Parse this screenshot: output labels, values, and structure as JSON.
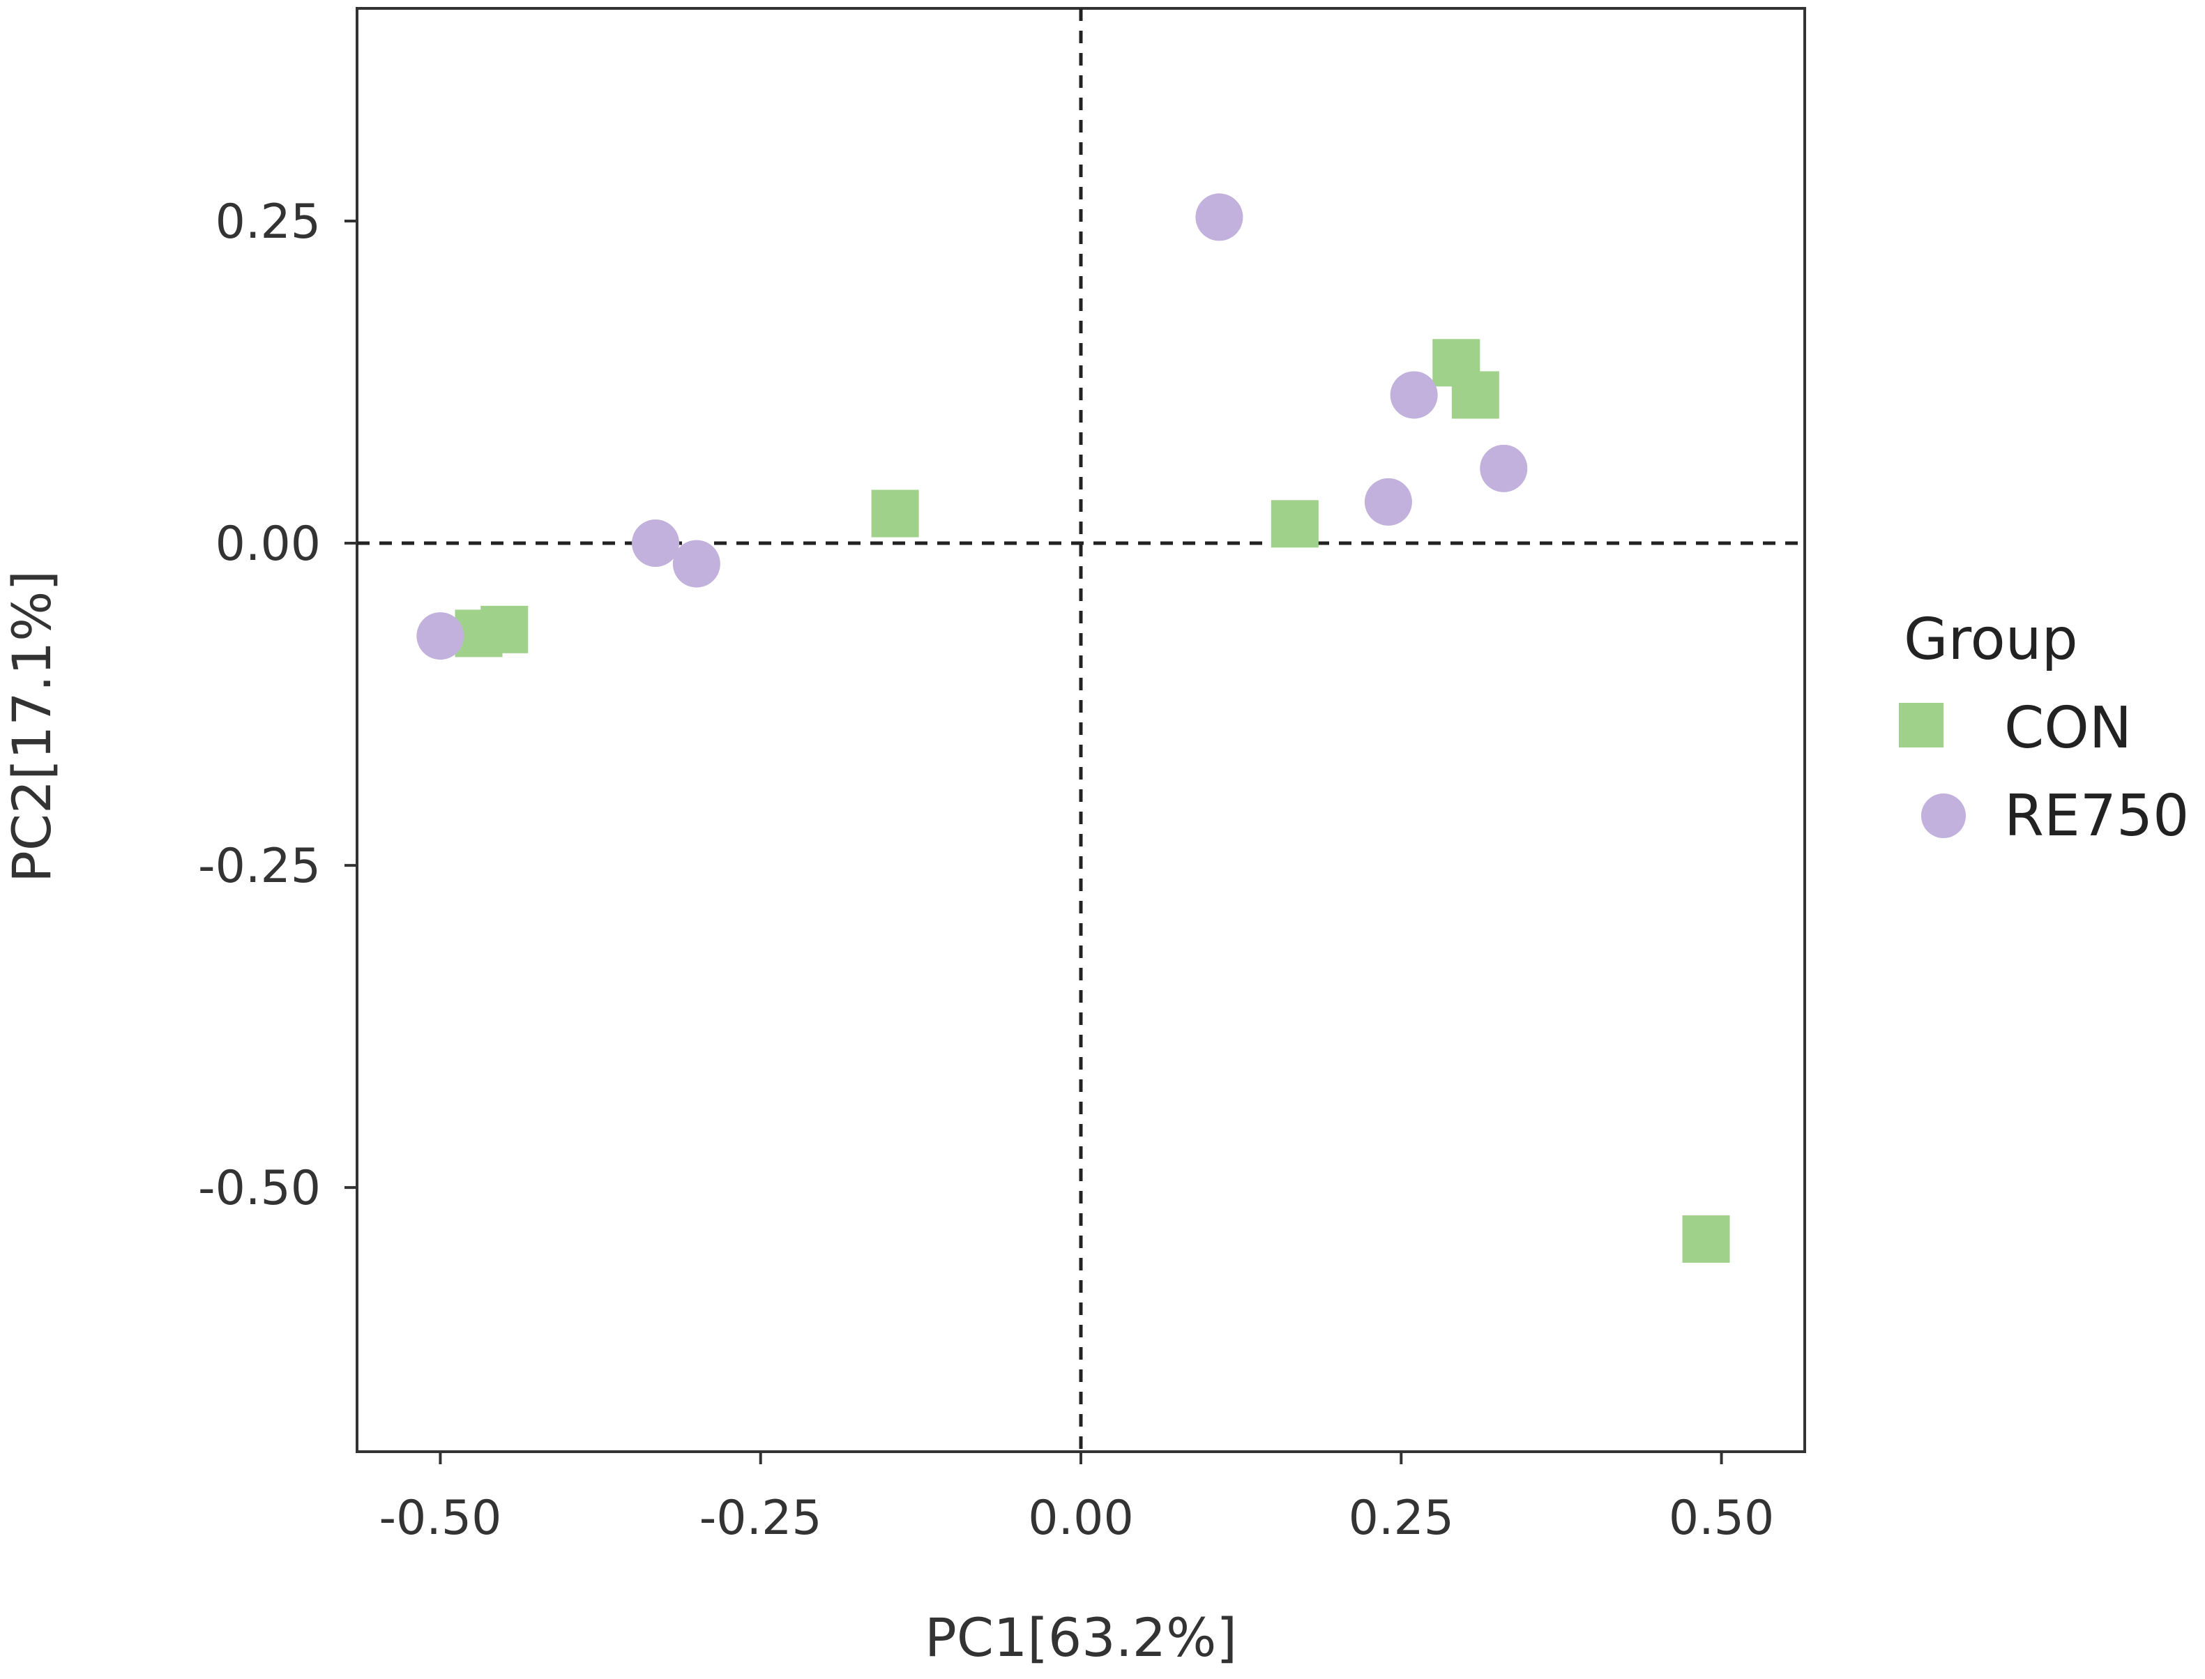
{
  "chart_data": {
    "type": "scatter",
    "title": "",
    "xlabel": "PC1[63.2%]",
    "ylabel": "PC2[17.1%]",
    "xlim": [
      -0.565,
      0.565
    ],
    "ylim": [
      -0.705,
      0.415
    ],
    "x_ticks": [
      {
        "value": -0.5,
        "label": "-0.50"
      },
      {
        "value": -0.25,
        "label": "-0.25"
      },
      {
        "value": 0.0,
        "label": "0.00"
      },
      {
        "value": 0.25,
        "label": "0.25"
      },
      {
        "value": 0.5,
        "label": "0.50"
      }
    ],
    "y_ticks": [
      {
        "value": 0.25,
        "label": "0.25"
      },
      {
        "value": 0.0,
        "label": "0.00"
      },
      {
        "value": -0.25,
        "label": "-0.25"
      },
      {
        "value": -0.5,
        "label": "-0.50"
      }
    ],
    "reference_lines": {
      "x": 0,
      "y": 0,
      "style": "dashed"
    },
    "grid": false,
    "legend": {
      "title": "Group",
      "position": "right"
    },
    "series": [
      {
        "name": "CON",
        "marker": "square",
        "color": "#9fd18a",
        "points": [
          {
            "x": -0.47,
            "y": -0.07
          },
          {
            "x": -0.45,
            "y": -0.067
          },
          {
            "x": -0.145,
            "y": 0.023
          },
          {
            "x": 0.167,
            "y": 0.015
          },
          {
            "x": 0.293,
            "y": 0.14
          },
          {
            "x": 0.308,
            "y": 0.115
          },
          {
            "x": 0.488,
            "y": -0.54
          }
        ]
      },
      {
        "name": "RE750",
        "marker": "circle",
        "color": "#c1b1dc",
        "points": [
          {
            "x": -0.5,
            "y": -0.072
          },
          {
            "x": -0.332,
            "y": 0.0
          },
          {
            "x": -0.3,
            "y": -0.016
          },
          {
            "x": 0.108,
            "y": 0.253
          },
          {
            "x": 0.24,
            "y": 0.032
          },
          {
            "x": 0.26,
            "y": 0.115
          },
          {
            "x": 0.33,
            "y": 0.058
          }
        ]
      }
    ]
  }
}
